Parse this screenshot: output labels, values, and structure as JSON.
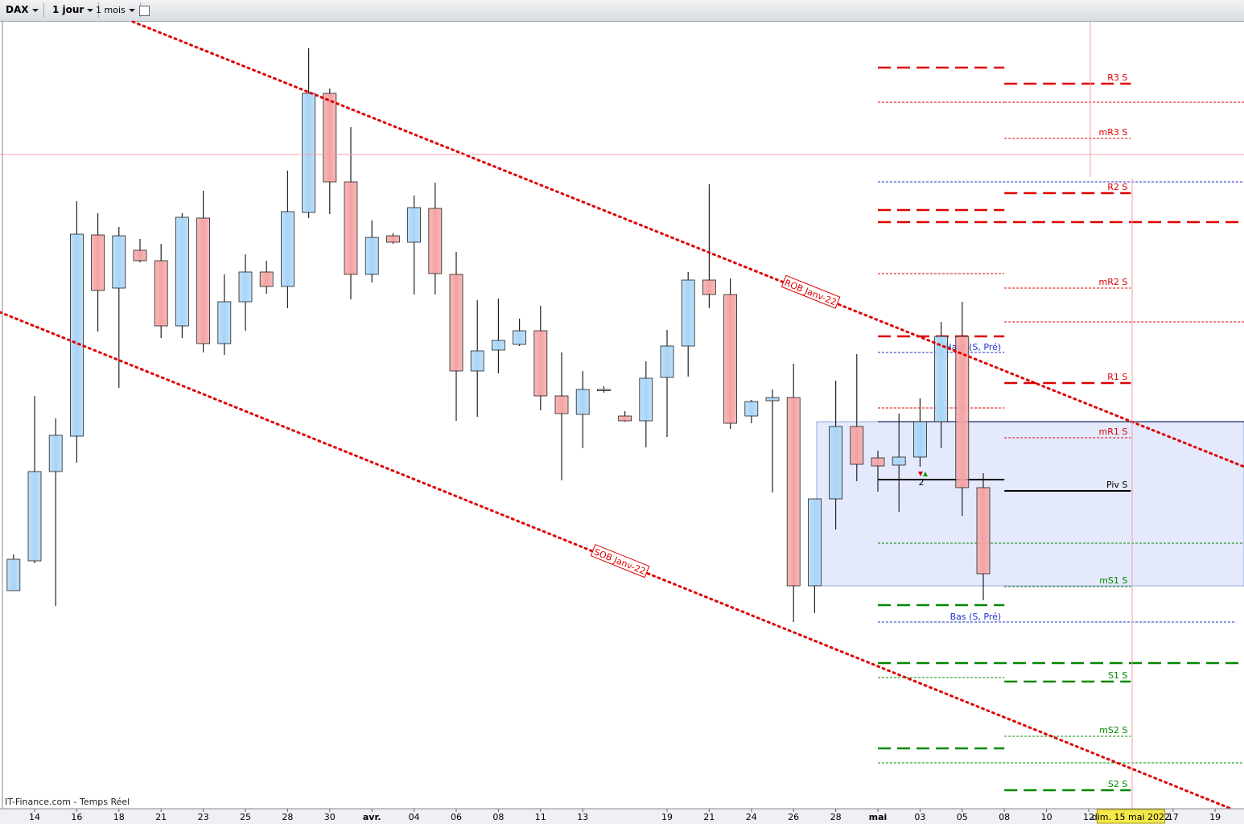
{
  "toolbar": {
    "symbol": "DAX",
    "interval": "1 jour",
    "range": "1 mois"
  },
  "footer": "IT-Finance.com - Temps Réel",
  "chart_data": {
    "type": "candlestick",
    "categories": [
      null,
      "14",
      null,
      "16",
      null,
      "18",
      null,
      "21",
      null,
      "23",
      null,
      "25",
      null,
      "28",
      null,
      "30",
      null,
      "avr.",
      null,
      "04",
      null,
      "06",
      null,
      "08",
      null,
      "11",
      null,
      "13",
      null,
      null,
      null,
      "19",
      null,
      "21",
      null,
      "24",
      null,
      "26",
      null,
      "28",
      null,
      "mai",
      null,
      "03",
      null,
      "05",
      null,
      "08",
      null,
      "10",
      null,
      "12",
      null,
      "dim. 15 mai 2022",
      null,
      "17",
      null,
      "19"
    ],
    "cursor_index": 53,
    "open": [
      13586,
      13660,
      13882,
      13970,
      14470,
      14338,
      14432,
      14406,
      14244,
      14512,
      14200,
      14304,
      14378,
      14342,
      14526,
      14822,
      14602,
      14372,
      14468,
      14452,
      14536,
      14372,
      14132,
      14184,
      14198,
      14232,
      14070,
      14024,
      14086,
      14020,
      14008,
      14116,
      14194,
      14358,
      14322,
      14020,
      14058,
      14066,
      13598,
      13814,
      13994,
      13916,
      13898,
      13918,
      14006,
      14218,
      13842,
      null,
      null,
      null,
      null,
      null,
      null,
      null,
      null,
      null,
      null,
      null
    ],
    "high": [
      13676,
      14070,
      14014,
      14554,
      14524,
      14490,
      14460,
      14448,
      14524,
      14580,
      14372,
      14422,
      14406,
      14630,
      14934,
      14834,
      14738,
      14506,
      14474,
      14568,
      14600,
      14428,
      14308,
      14312,
      14262,
      14294,
      14178,
      14132,
      14094,
      14032,
      14156,
      14234,
      14378,
      14596,
      14362,
      14060,
      14086,
      14150,
      13814,
      14108,
      14174,
      13934,
      14026,
      14064,
      14254,
      14304,
      13878,
      null,
      null,
      null,
      null,
      null,
      null,
      null,
      null,
      null,
      null,
      null
    ],
    "low": [
      13586,
      13654,
      13548,
      13904,
      14230,
      14090,
      14402,
      14214,
      14214,
      14178,
      14172,
      14232,
      14324,
      14288,
      14512,
      14522,
      14310,
      14352,
      14448,
      14322,
      14322,
      14008,
      14018,
      14126,
      14194,
      14034,
      13860,
      13940,
      14078,
      14006,
      13942,
      13968,
      14118,
      14288,
      13988,
      14002,
      13830,
      13508,
      13530,
      13738,
      13858,
      13832,
      13782,
      13894,
      13940,
      13772,
      13562,
      null,
      null,
      null,
      null,
      null,
      null,
      null,
      null,
      null,
      null,
      null
    ],
    "close": [
      13664,
      13882,
      13972,
      14472,
      14332,
      14468,
      14406,
      14244,
      14514,
      14200,
      14304,
      14378,
      14342,
      14528,
      14822,
      14602,
      14372,
      14464,
      14452,
      14538,
      14374,
      14132,
      14182,
      14208,
      14232,
      14070,
      14026,
      14086,
      14086,
      14008,
      14114,
      14194,
      14358,
      14322,
      14002,
      14056,
      14066,
      13598,
      13814,
      13994,
      13900,
      13896,
      13918,
      14006,
      14218,
      13842,
      13628,
      null,
      null,
      null,
      null,
      null,
      null,
      null,
      null,
      null,
      null,
      null
    ],
    "ylim": [
      13044,
      15000
    ],
    "colors": {
      "up": "#a9d5f7",
      "down": "#f4a3a3"
    },
    "pivots": [
      {
        "name": "R3 S",
        "value": 14846,
        "color": "#e00000",
        "style": "major"
      },
      {
        "name": "mR3 S",
        "value": 14710,
        "color": "#e00000",
        "style": "minor"
      },
      {
        "name": "R2 S",
        "value": 14574,
        "color": "#e00000",
        "style": "major"
      },
      {
        "name": "mR2 S",
        "value": 14338,
        "color": "#e00000",
        "style": "minor"
      },
      {
        "name": "R1 S",
        "value": 14102,
        "color": "#e00000",
        "style": "major"
      },
      {
        "name": "mR1 S",
        "value": 13966,
        "color": "#e00000",
        "style": "minor"
      },
      {
        "name": "Piv S",
        "value": 13834,
        "color": "#000000",
        "style": "pivot"
      },
      {
        "name": "mS1 S",
        "value": 13596,
        "color": "#008800",
        "style": "minor"
      },
      {
        "name": "S1 S",
        "value": 13360,
        "color": "#008800",
        "style": "major"
      },
      {
        "name": "mS2 S",
        "value": 13224,
        "color": "#008800",
        "style": "minor"
      },
      {
        "name": "S2 S",
        "value": 13090,
        "color": "#008800",
        "style": "major"
      }
    ],
    "pivot_start": 47,
    "pivot_end": 53,
    "previous_pivots": [
      {
        "value": 14886,
        "color": "#e00000",
        "style": "major"
      },
      {
        "value": 14800,
        "color": "#e00000",
        "style": "minor"
      },
      {
        "value": 14532,
        "color": "#e00000",
        "style": "major"
      },
      {
        "value": 14374,
        "color": "#e00000",
        "style": "minor"
      },
      {
        "value": 14218,
        "color": "#e00000",
        "style": "major"
      },
      {
        "value": 14040,
        "color": "#e00000",
        "style": "minor"
      },
      {
        "value": 13862,
        "color": "#000000",
        "style": "pivot"
      },
      {
        "value": 13550,
        "color": "#008800",
        "style": "major"
      },
      {
        "value": 13370,
        "color": "#008800",
        "style": "minor"
      },
      {
        "value": 13194,
        "color": "#008800",
        "style": "major"
      }
    ],
    "previous_start": 41,
    "extended_levels": [
      {
        "value": 14800,
        "color": "#e00000",
        "style": "minor",
        "start": 47
      },
      {
        "value": 14602,
        "color": "#2233cc",
        "style": "minor",
        "start": 41
      },
      {
        "value": 14502,
        "color": "#e00000",
        "style": "major",
        "start": 41
      },
      {
        "value": 14254,
        "color": "#e00000",
        "style": "minor",
        "start": 47
      },
      {
        "value": 14006,
        "color": "#1a2a66",
        "style": "solid",
        "start": 41
      },
      {
        "value": 13704,
        "color": "#008800",
        "style": "minor",
        "start": 41
      },
      {
        "value": 13406,
        "color": "#008800",
        "style": "major",
        "start": 41
      },
      {
        "value": 13158,
        "color": "#008800",
        "style": "minor",
        "start": 41
      }
    ],
    "range_markers": [
      {
        "name": "Haut (S, Pré)",
        "value": 14178,
        "color": "#2233cc",
        "end": 47
      },
      {
        "name": "Bas (S, Pré)",
        "value": 13508,
        "color": "#2233cc",
        "end": 58
      }
    ],
    "trendlines": [
      {
        "label": "ROB Janv-22",
        "x": [
          5.66,
          58.37
        ],
        "y": [
          15000,
          13894
        ],
        "color": "#e00000"
      },
      {
        "label": "SOB Janv-22",
        "x": [
          -0.64,
          57.75
        ],
        "y": [
          14278,
          13044
        ],
        "color": "#e00000"
      }
    ],
    "zone": {
      "start": 38.1,
      "ylim": [
        13598,
        14006
      ],
      "color": "#e4eafc"
    },
    "annotation": "2"
  }
}
